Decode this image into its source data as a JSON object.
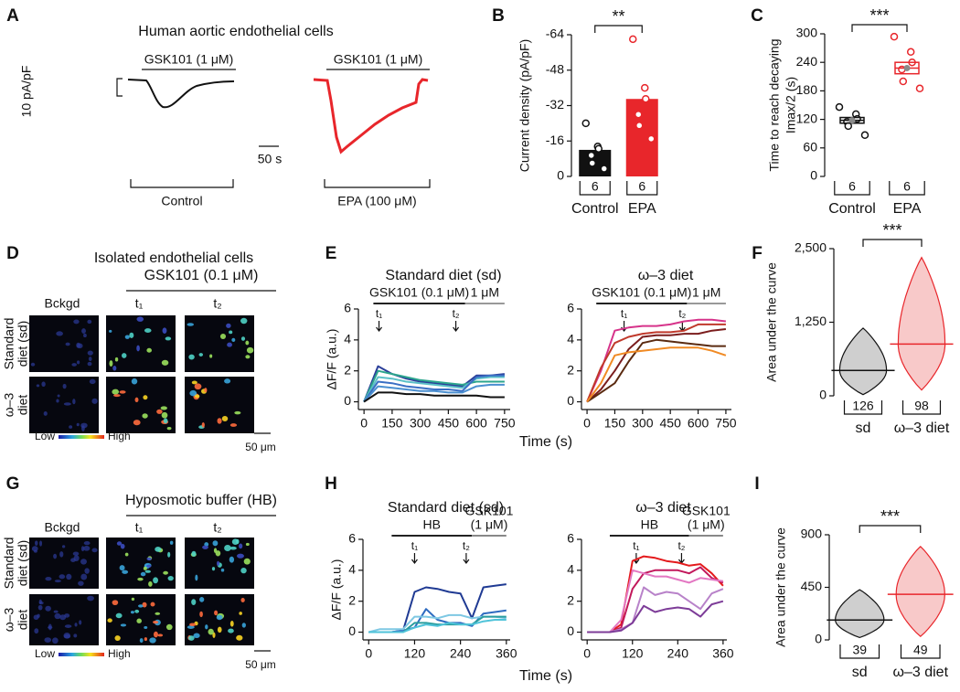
{
  "panel_a": {
    "letter": "A",
    "title": "Human aortic endothelial cells",
    "stim_labels": [
      "GSK101 (1 μM)",
      "GSK101 (1 μM)"
    ],
    "scale_y": "10 pA/pF",
    "scale_x": "50 s",
    "conditions": [
      "Control",
      "EPA (100 μM)"
    ]
  },
  "panel_d": {
    "letter": "D",
    "title": "Isolated endothelial cells",
    "stim_label": "GSK101 (0.1 μM)",
    "columns": [
      "Bckgd",
      "t₁",
      "t₂"
    ],
    "rows": [
      [
        "Standard",
        "diet (sd)"
      ],
      [
        "ω–3",
        "diet"
      ]
    ],
    "colorbar": [
      "Low",
      "High"
    ],
    "scale": "50 μm"
  },
  "panel_e": {
    "letter": "E",
    "xlabel": "Time (s)"
  },
  "panel_g": {
    "letter": "G",
    "stim_label": "Hyposmotic buffer (HB)",
    "columns": [
      "Bckgd",
      "t₁",
      "t₂"
    ],
    "rows": [
      [
        "Standard",
        "diet (sd)"
      ],
      [
        "ω–3",
        "diet"
      ]
    ],
    "colorbar": [
      "Low",
      "High"
    ],
    "scale": "50 μm"
  },
  "panel_h": {
    "letter": "H",
    "xlabel": "Time (s)"
  },
  "chart_data": [
    {
      "label": "B",
      "type": "bar",
      "ylabel": "Current density (pA/pF)",
      "categories": [
        "Control",
        "EPA"
      ],
      "values": [
        -12,
        -35
      ],
      "errors": [
        2.5,
        6.5
      ],
      "points": [
        [
          -24,
          -13.5,
          -12.5,
          -9.5,
          -6,
          -3.5
        ],
        [
          -62,
          -40,
          -35,
          -28,
          -23,
          -17
        ]
      ],
      "colors": [
        "#111111",
        "#e8262b"
      ],
      "n_labels": [
        "6",
        "6"
      ],
      "significance": "**",
      "ylim": [
        0,
        -64
      ],
      "yticks": [
        -64,
        -48,
        -32,
        -16,
        0
      ]
    },
    {
      "label": "C",
      "type": "box",
      "ylabel": [
        "Time to reach decaying",
        "Imax/2 (s)"
      ],
      "categories": [
        "Control",
        "EPA"
      ],
      "values": [
        118,
        228
      ],
      "errors": [
        6,
        12
      ],
      "points": [
        [
          146,
          131,
          121,
          115,
          106,
          87
        ],
        [
          294,
          262,
          240,
          225,
          200,
          185
        ]
      ],
      "colors": [
        "#111111",
        "#e8262b"
      ],
      "n_labels": [
        "6",
        "6"
      ],
      "significance": "***",
      "ylim": [
        0,
        300
      ],
      "yticks": [
        0,
        60,
        120,
        180,
        240,
        300
      ]
    },
    {
      "type": "line",
      "title": "Standard diet (sd)",
      "ylabel": "ΔF/F (a.u.)",
      "x": [
        0,
        75,
        150,
        225,
        300,
        375,
        450,
        525,
        600,
        675,
        750
      ],
      "series": [
        {
          "color": "#2b3f9a",
          "values": [
            0,
            2.3,
            1.8,
            1.5,
            1.3,
            1.2,
            1.1,
            1.0,
            1.7,
            1.7,
            1.8
          ]
        },
        {
          "color": "#2ca58d",
          "values": [
            0,
            2.0,
            1.8,
            1.6,
            1.4,
            1.3,
            1.2,
            1.1,
            1.3,
            1.3,
            1.3
          ]
        },
        {
          "color": "#5bc0c8",
          "values": [
            0,
            1.6,
            1.5,
            1.3,
            1.2,
            1.1,
            1.0,
            0.9,
            1.5,
            1.6,
            1.6
          ]
        },
        {
          "color": "#3a6fc4",
          "values": [
            0,
            1.3,
            1.2,
            1.0,
            0.9,
            0.8,
            0.8,
            0.7,
            1.6,
            1.7,
            1.7
          ]
        },
        {
          "color": "#4a8fd0",
          "values": [
            0,
            1.0,
            0.9,
            0.8,
            0.7,
            0.7,
            0.6,
            0.6,
            1.0,
            1.1,
            1.1
          ]
        },
        {
          "color": "#111111",
          "values": [
            0,
            0.6,
            0.6,
            0.5,
            0.5,
            0.4,
            0.4,
            0.4,
            0.4,
            0.3,
            0.3
          ]
        }
      ],
      "xlim": [
        -30,
        780
      ],
      "ylim": [
        -0.5,
        6
      ],
      "xticks": [
        0,
        150,
        300,
        450,
        600,
        750
      ],
      "yticks": [
        0,
        2,
        4,
        6
      ],
      "stimuli": [
        {
          "label": "GSK101 (0.1 μM)",
          "start": 50,
          "end": 540,
          "color": "#222222"
        },
        {
          "label": "1 μM",
          "start": 540,
          "end": 750,
          "color": "#999999"
        }
      ],
      "markers": [
        {
          "label": "t₁",
          "x": 80
        },
        {
          "label": "t₂",
          "x": 490
        }
      ]
    },
    {
      "type": "line",
      "title": "ω–3 diet",
      "x": [
        0,
        75,
        150,
        225,
        300,
        375,
        450,
        525,
        600,
        675,
        750
      ],
      "series": [
        {
          "color": "#d6338a",
          "values": [
            0,
            2.0,
            4.6,
            4.8,
            4.9,
            4.9,
            5.0,
            5.2,
            5.3,
            5.3,
            5.2
          ]
        },
        {
          "color": "#c0392b",
          "values": [
            0,
            2.2,
            3.8,
            4.2,
            4.4,
            4.5,
            4.5,
            4.6,
            5.0,
            5.0,
            5.0
          ]
        },
        {
          "color": "#7b1d1d",
          "values": [
            0,
            0.8,
            2.0,
            3.4,
            4.2,
            4.3,
            4.3,
            4.4,
            4.4,
            4.6,
            4.7
          ]
        },
        {
          "color": "#5a2a10",
          "values": [
            0,
            0.6,
            1.2,
            2.6,
            3.8,
            4.0,
            3.9,
            3.8,
            3.7,
            3.6,
            3.6
          ]
        },
        {
          "color": "#f08a24",
          "values": [
            0,
            1.2,
            3.0,
            3.2,
            3.3,
            3.4,
            3.5,
            3.5,
            3.5,
            3.3,
            3.0
          ]
        }
      ],
      "xlim": [
        -30,
        780
      ],
      "ylim": [
        -0.5,
        6
      ],
      "xticks": [
        0,
        150,
        300,
        450,
        600,
        750
      ],
      "yticks": [
        0,
        2,
        4,
        6
      ],
      "stimuli": [
        {
          "label": "GSK101 (0.1 μM)",
          "start": 50,
          "end": 540,
          "color": "#222222"
        },
        {
          "label": "1 μM",
          "start": 540,
          "end": 750,
          "color": "#999999"
        }
      ],
      "markers": [
        {
          "label": "t₁",
          "x": 200
        },
        {
          "label": "t₂",
          "x": 515
        }
      ]
    },
    {
      "label": "F",
      "type": "violin",
      "ylabel": "Area under the curve",
      "categories": [
        "sd",
        "ω–3 diet"
      ],
      "values": [
        430,
        880
      ],
      "mins": [
        20,
        100
      ],
      "maxs": [
        1150,
        2350
      ],
      "colors": [
        "#111111",
        "#e8262b"
      ],
      "fills": [
        "#cfcfcf",
        "#f8c9c9"
      ],
      "n_labels": [
        "126",
        "98"
      ],
      "significance": "***",
      "ylim": [
        0,
        2500
      ],
      "yticks": [
        0,
        {
          "value": 1250,
          "label": "1,250"
        },
        {
          "value": 2500,
          "label": "2,500"
        }
      ]
    },
    {
      "type": "line",
      "title": "Standard diet (sd)",
      "ylabel": "ΔF/F (a.u.)",
      "x": [
        0,
        30,
        60,
        90,
        120,
        150,
        180,
        210,
        240,
        270,
        300,
        330,
        360
      ],
      "series": [
        {
          "color": "#1f3a93",
          "values": [
            0,
            0,
            0,
            0.1,
            2.6,
            2.9,
            2.8,
            2.6,
            2.5,
            0.9,
            2.9,
            3.0,
            3.1
          ]
        },
        {
          "color": "#2e6bc0",
          "values": [
            0,
            0,
            0,
            0.1,
            0.3,
            1.5,
            0.8,
            0.6,
            0.6,
            0.4,
            1.2,
            1.3,
            1.4
          ]
        },
        {
          "color": "#7ec8e3",
          "values": [
            0,
            0.2,
            0.2,
            0.2,
            1.0,
            1.0,
            0.9,
            1.1,
            1.1,
            0.9,
            1.0,
            1.0,
            0.9
          ]
        },
        {
          "color": "#2a9d9f",
          "values": [
            0,
            0,
            0,
            0,
            0.6,
            0.6,
            0.5,
            0.5,
            0.5,
            0.5,
            1.0,
            1.0,
            1.0
          ]
        },
        {
          "color": "#4fc3d9",
          "values": [
            0,
            0,
            0,
            0,
            0.3,
            0.5,
            0.4,
            0.6,
            0.5,
            0.5,
            0.7,
            0.8,
            0.8
          ]
        }
      ],
      "xlim": [
        -15,
        370
      ],
      "ylim": [
        -0.5,
        6
      ],
      "xticks": [
        0,
        120,
        240,
        360
      ],
      "yticks": [
        0,
        2,
        4,
        6
      ],
      "stimuli": [
        {
          "label": "HB",
          "start": 60,
          "end": 270,
          "color": "#222222"
        },
        {
          "label": [
            "GSK101",
            "(1 μM)"
          ],
          "start": 270,
          "end": 360,
          "color": "#888888"
        }
      ],
      "markers": [
        {
          "label": "t₁",
          "x": 120
        },
        {
          "label": "t₂",
          "x": 255
        }
      ]
    },
    {
      "type": "line",
      "title": "ω–3 diet",
      "x": [
        0,
        30,
        60,
        90,
        120,
        150,
        180,
        210,
        240,
        270,
        300,
        330,
        360
      ],
      "series": [
        {
          "color": "#e41a1c",
          "values": [
            0,
            0,
            0,
            0.5,
            4.6,
            4.9,
            4.8,
            4.6,
            4.5,
            4.3,
            4.4,
            3.8,
            3.0
          ]
        },
        {
          "color": "#c2185b",
          "values": [
            0,
            0,
            0,
            0.3,
            2.8,
            3.8,
            4.0,
            4.0,
            4.0,
            3.8,
            4.2,
            3.5,
            3.2
          ]
        },
        {
          "color": "#e377c2",
          "values": [
            0,
            0,
            0,
            0.8,
            4.0,
            3.8,
            3.6,
            3.6,
            3.4,
            3.2,
            3.5,
            3.4,
            3.3
          ]
        },
        {
          "color": "#b882c9",
          "values": [
            0,
            0,
            0,
            0.2,
            0.6,
            2.9,
            2.4,
            2.6,
            2.5,
            2.0,
            1.5,
            2.5,
            2.8
          ]
        },
        {
          "color": "#7d3c98",
          "values": [
            0,
            0,
            0,
            0.1,
            0.6,
            1.7,
            1.3,
            1.5,
            1.6,
            1.5,
            1.0,
            1.8,
            2.0
          ]
        }
      ],
      "xlim": [
        -15,
        370
      ],
      "ylim": [
        -0.5,
        6
      ],
      "xticks": [
        0,
        120,
        240,
        360
      ],
      "yticks": [
        0,
        2,
        4,
        6
      ],
      "stimuli": [
        {
          "label": "HB",
          "start": 60,
          "end": 270,
          "color": "#222222"
        },
        {
          "label": [
            "GSK101",
            "(1 μM)"
          ],
          "start": 270,
          "end": 360,
          "color": "#888888"
        }
      ],
      "markers": [
        {
          "label": "t₁",
          "x": 130
        },
        {
          "label": "t₂",
          "x": 250
        }
      ]
    },
    {
      "label": "I",
      "type": "violin",
      "ylabel": "Area under the curve",
      "categories": [
        "sd",
        "ω–3 diet"
      ],
      "values": [
        170,
        390
      ],
      "mins": [
        20,
        30
      ],
      "maxs": [
        430,
        800
      ],
      "colors": [
        "#111111",
        "#e8262b"
      ],
      "fills": [
        "#cfcfcf",
        "#f8c9c9"
      ],
      "n_labels": [
        "39",
        "49"
      ],
      "significance": "***",
      "ylim": [
        0,
        900
      ],
      "yticks": [
        0,
        450,
        900
      ]
    }
  ]
}
